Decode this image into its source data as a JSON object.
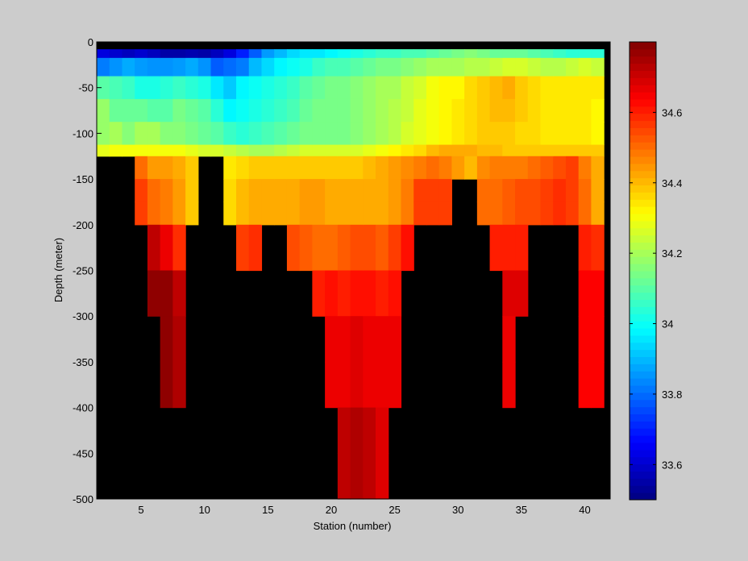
{
  "chart_data": {
    "type": "heatmap",
    "title": "",
    "xlabel": "Station (number)",
    "ylabel": "Depth (meter)",
    "xlim": [
      1.5,
      42
    ],
    "ylim": [
      -500,
      0
    ],
    "x_ticks": [
      5,
      10,
      15,
      20,
      25,
      30,
      35,
      40
    ],
    "y_ticks": [
      0,
      -50,
      -100,
      -150,
      -200,
      -250,
      -300,
      -350,
      -400,
      -450,
      -500
    ],
    "colorbar": {
      "range": [
        33.5,
        34.8
      ],
      "ticks": [
        33.6,
        33.8,
        34,
        34.2,
        34.4,
        34.6
      ],
      "colormap": "jet"
    },
    "missing_color": "#000000",
    "stations": [
      2,
      3,
      4,
      5,
      6,
      7,
      8,
      9,
      10,
      11,
      12,
      13,
      14,
      15,
      16,
      17,
      18,
      19,
      20,
      21,
      22,
      23,
      24,
      25,
      26,
      27,
      28,
      29,
      30,
      31,
      32,
      33,
      34,
      35,
      36,
      37,
      38,
      39,
      40,
      41
    ],
    "depths": [
      -10,
      -25,
      -50,
      -75,
      -100,
      -125,
      -150,
      -175,
      -200,
      -250,
      -300,
      -350,
      -400,
      -450,
      -500
    ],
    "station_profiles": [
      [
        33.62,
        33.82,
        34.1,
        34.18,
        34.18,
        34.28,
        null,
        null,
        null,
        null,
        null,
        null,
        null,
        null,
        null
      ],
      [
        33.6,
        33.85,
        34.08,
        34.12,
        34.2,
        34.3,
        null,
        null,
        null,
        null,
        null,
        null,
        null,
        null,
        null
      ],
      [
        33.58,
        33.88,
        34.06,
        34.12,
        34.16,
        34.3,
        null,
        null,
        null,
        null,
        null,
        null,
        null,
        null,
        null
      ],
      [
        33.6,
        33.86,
        34.02,
        34.12,
        34.2,
        34.3,
        34.5,
        34.56,
        34.56,
        null,
        null,
        null,
        null,
        null,
        null
      ],
      [
        33.58,
        33.85,
        34.02,
        34.1,
        34.2,
        34.3,
        34.44,
        34.5,
        34.5,
        34.72,
        34.78,
        null,
        null,
        null,
        null
      ],
      [
        33.55,
        33.85,
        34.04,
        34.1,
        34.16,
        34.3,
        34.44,
        34.48,
        34.48,
        34.66,
        34.78,
        34.78,
        34.78,
        null,
        null
      ],
      [
        33.55,
        33.86,
        34.06,
        34.14,
        34.16,
        34.3,
        34.42,
        34.44,
        34.44,
        34.58,
        34.72,
        34.74,
        34.74,
        null,
        null
      ],
      [
        33.56,
        33.88,
        34.04,
        34.12,
        34.14,
        34.28,
        34.38,
        34.38,
        34.38,
        null,
        null,
        null,
        null,
        null,
        null
      ],
      [
        33.55,
        33.85,
        34.02,
        34.1,
        34.12,
        34.26,
        null,
        null,
        null,
        null,
        null,
        null,
        null,
        null,
        null
      ],
      [
        33.58,
        33.78,
        33.96,
        34.04,
        34.1,
        34.26,
        null,
        null,
        null,
        null,
        null,
        null,
        null,
        null,
        null
      ],
      [
        33.62,
        33.8,
        33.92,
        33.98,
        34.06,
        34.24,
        34.34,
        34.36,
        34.36,
        null,
        null,
        null,
        null,
        null,
        null
      ],
      [
        33.7,
        33.82,
        33.98,
        34,
        34.04,
        34.22,
        34.36,
        34.4,
        34.4,
        34.56,
        null,
        null,
        null,
        null,
        null
      ],
      [
        33.78,
        33.9,
        34,
        34.02,
        34.06,
        34.2,
        34.38,
        34.42,
        34.42,
        34.58,
        null,
        null,
        null,
        null,
        null
      ],
      [
        33.86,
        33.94,
        34.02,
        34.04,
        34.08,
        34.2,
        34.38,
        34.42,
        34.42,
        null,
        null,
        null,
        null,
        null,
        null
      ],
      [
        33.9,
        33.98,
        34.04,
        34.06,
        34.1,
        34.22,
        34.38,
        34.42,
        34.42,
        null,
        null,
        null,
        null,
        null,
        null
      ],
      [
        33.94,
        34,
        34.06,
        34.08,
        34.12,
        34.24,
        34.38,
        34.42,
        34.42,
        34.54,
        null,
        null,
        null,
        null,
        null
      ],
      [
        33.96,
        34.02,
        34.1,
        34.12,
        34.14,
        34.26,
        34.38,
        34.44,
        34.44,
        34.52,
        null,
        null,
        null,
        null,
        null
      ],
      [
        33.96,
        34.06,
        34.12,
        34.14,
        34.14,
        34.26,
        34.38,
        34.44,
        34.44,
        34.5,
        34.6,
        null,
        null,
        null,
        null
      ],
      [
        33.98,
        34.08,
        34.14,
        34.14,
        34.14,
        34.26,
        34.38,
        34.42,
        34.42,
        34.5,
        34.62,
        34.66,
        34.66,
        null,
        null
      ],
      [
        34,
        34.08,
        34.14,
        34.14,
        34.14,
        34.26,
        34.38,
        34.42,
        34.42,
        34.52,
        34.6,
        34.66,
        34.66,
        34.72,
        34.72
      ],
      [
        34.02,
        34.1,
        34.16,
        34.16,
        34.16,
        34.26,
        34.38,
        34.42,
        34.42,
        34.54,
        34.62,
        34.68,
        34.68,
        34.74,
        34.74
      ],
      [
        34.04,
        34.12,
        34.18,
        34.18,
        34.18,
        34.28,
        34.4,
        34.42,
        34.42,
        34.54,
        34.62,
        34.66,
        34.66,
        34.72,
        34.72
      ],
      [
        34.06,
        34.14,
        34.2,
        34.2,
        34.2,
        34.3,
        34.42,
        34.42,
        34.42,
        34.52,
        34.6,
        34.66,
        34.66,
        34.68,
        34.68
      ],
      [
        34.06,
        34.14,
        34.2,
        34.22,
        34.22,
        34.32,
        34.44,
        34.44,
        34.44,
        34.56,
        34.62,
        34.66,
        34.66,
        null,
        null
      ],
      [
        34.08,
        34.16,
        34.24,
        34.24,
        34.26,
        34.34,
        34.46,
        34.48,
        34.48,
        34.62,
        null,
        null,
        null,
        null,
        null
      ],
      [
        34.08,
        34.18,
        34.26,
        34.28,
        34.28,
        34.36,
        34.48,
        34.56,
        34.56,
        null,
        null,
        null,
        null,
        null,
        null
      ],
      [
        34.1,
        34.2,
        34.3,
        34.3,
        34.3,
        34.4,
        34.5,
        34.56,
        34.56,
        null,
        null,
        null,
        null,
        null,
        null
      ],
      [
        34.12,
        34.2,
        34.32,
        34.32,
        34.32,
        34.42,
        34.48,
        34.56,
        34.56,
        null,
        null,
        null,
        null,
        null,
        null
      ],
      [
        34.14,
        34.2,
        34.32,
        34.34,
        34.34,
        34.42,
        34.44,
        null,
        null,
        null,
        null,
        null,
        null,
        null,
        null
      ],
      [
        34.16,
        34.22,
        34.36,
        34.36,
        34.36,
        34.42,
        34.4,
        null,
        null,
        null,
        null,
        null,
        null,
        null,
        null
      ],
      [
        34.14,
        34.22,
        34.38,
        34.38,
        34.38,
        34.4,
        34.46,
        34.5,
        34.5,
        null,
        null,
        null,
        null,
        null,
        null
      ],
      [
        34.12,
        34.24,
        34.4,
        34.4,
        34.38,
        34.4,
        34.48,
        34.5,
        34.5,
        34.6,
        null,
        null,
        null,
        null,
        null
      ],
      [
        34.12,
        34.26,
        34.42,
        34.4,
        34.38,
        34.38,
        34.48,
        34.52,
        34.52,
        34.6,
        34.68,
        34.66,
        34.66,
        null,
        null
      ],
      [
        34.12,
        34.26,
        34.38,
        34.38,
        34.36,
        34.38,
        34.48,
        34.54,
        34.54,
        34.6,
        34.68,
        null,
        null,
        null,
        null
      ],
      [
        34.1,
        34.24,
        34.36,
        34.36,
        34.36,
        34.38,
        34.5,
        34.54,
        34.54,
        null,
        null,
        null,
        null,
        null,
        null
      ],
      [
        34.08,
        34.22,
        34.34,
        34.34,
        34.34,
        34.38,
        34.52,
        34.56,
        34.56,
        null,
        null,
        null,
        null,
        null,
        null
      ],
      [
        34.06,
        34.22,
        34.34,
        34.34,
        34.34,
        34.38,
        34.54,
        34.58,
        34.58,
        null,
        null,
        null,
        null,
        null,
        null
      ],
      [
        34.04,
        34.24,
        34.34,
        34.34,
        34.34,
        34.38,
        34.56,
        34.56,
        34.56,
        null,
        null,
        null,
        null,
        null,
        null
      ],
      [
        34.04,
        34.26,
        34.34,
        34.34,
        34.34,
        34.38,
        34.48,
        34.5,
        34.5,
        34.6,
        34.64,
        34.64,
        34.64,
        null,
        null
      ],
      [
        34.04,
        34.24,
        34.34,
        34.32,
        34.32,
        34.38,
        34.42,
        34.42,
        34.42,
        34.58,
        34.64,
        34.64,
        34.64,
        null,
        null
      ]
    ]
  }
}
